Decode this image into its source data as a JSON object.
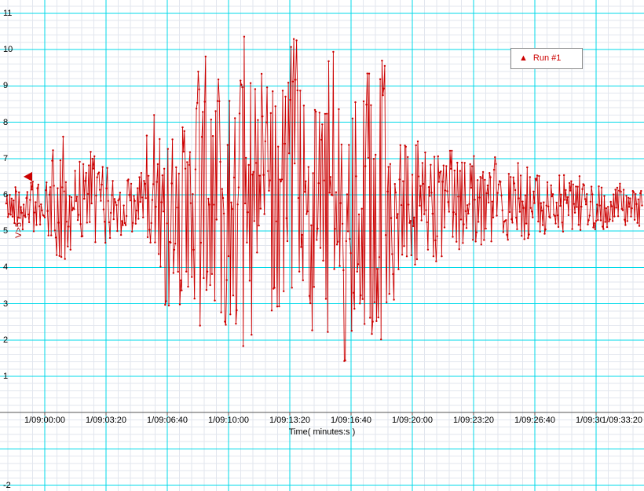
{
  "chart_data": {
    "type": "line",
    "title": "",
    "xlabel": "Time( minutes:s )",
    "ylabel": "",
    "grid": {
      "on": true,
      "major_color": "#00d9e9",
      "minor_color": "#e2e6ee",
      "background": "#ffffff",
      "axis_line_color": "#555555"
    },
    "legend": {
      "position": "top-right",
      "entries": [
        {
          "label": "Run #1",
          "marker": "triangle-up",
          "marker_glyph": "▲",
          "color": "#cc0000"
        }
      ]
    },
    "x_axis": {
      "tick_seconds": [
        0,
        200,
        400,
        600,
        800,
        1000,
        1200,
        1400,
        1600,
        1800,
        2000
      ],
      "tick_labels": [
        "1/09:00:00",
        "1/09:03:20",
        "1/09:06:40",
        "1/09:10:00",
        "1/09:13:20",
        "1/09:16:40",
        "1/09:20:00",
        "1/09:23:20",
        "1/09:26:40",
        "1/09:30:00",
        "1/09:33:20"
      ],
      "range_seconds": [
        -126,
        1951
      ]
    },
    "y_axis": {
      "tick_values": [
        11,
        10,
        9,
        8,
        7,
        6,
        5,
        4,
        3,
        2,
        1,
        -2
      ],
      "tick_labels": [
        "11",
        "10",
        "9",
        "8",
        "7",
        "6",
        "5",
        "4",
        "3",
        "2",
        "1",
        "-2"
      ],
      "range": [
        -2.3,
        11.4
      ]
    },
    "series": [
      {
        "name": "Run #1",
        "color": "#cc0000",
        "marker": "dot",
        "style": "line-with-dots",
        "baseline": 5.65,
        "clip_range": [
          1.2,
          10.4
        ],
        "sample_interval_seconds": 3,
        "envelope_keypoints": [
          [
            -126,
            5.1,
            6.25
          ],
          [
            -50,
            5.0,
            6.35
          ],
          [
            10,
            4.7,
            6.6
          ],
          [
            46,
            3.6,
            8.0
          ],
          [
            90,
            4.4,
            7.2
          ],
          [
            150,
            4.6,
            7.4
          ],
          [
            230,
            4.7,
            7.0
          ],
          [
            300,
            5.0,
            6.5
          ],
          [
            325,
            4.2,
            7.4
          ],
          [
            341,
            2.0,
            9.3
          ],
          [
            380,
            3.0,
            8.6
          ],
          [
            430,
            2.5,
            8.9
          ],
          [
            480,
            3.4,
            8.2
          ],
          [
            500,
            1.4,
            10.3
          ],
          [
            560,
            1.25,
            10.4
          ],
          [
            650,
            1.25,
            10.4
          ],
          [
            738,
            2.8,
            8.8
          ],
          [
            770,
            1.3,
            10.35
          ],
          [
            840,
            1.25,
            10.4
          ],
          [
            900,
            3.0,
            8.6
          ],
          [
            930,
            1.3,
            10.35
          ],
          [
            1000,
            1.25,
            10.4
          ],
          [
            1040,
            2.2,
            9.2
          ],
          [
            1070,
            1.3,
            10.35
          ],
          [
            1110,
            1.25,
            10.4
          ],
          [
            1140,
            2.6,
            9.0
          ],
          [
            1190,
            3.5,
            8.0
          ],
          [
            1230,
            4.0,
            7.7
          ],
          [
            1290,
            3.9,
            7.6
          ],
          [
            1360,
            4.3,
            7.3
          ],
          [
            1450,
            4.5,
            7.1
          ],
          [
            1550,
            4.7,
            6.9
          ],
          [
            1650,
            4.85,
            6.75
          ],
          [
            1780,
            5.0,
            6.5
          ],
          [
            1900,
            5.1,
            6.3
          ],
          [
            1951,
            5.1,
            6.25
          ]
        ]
      }
    ],
    "annotations": {
      "left_axis_marker": {
        "shape": "triangle-left",
        "color": "#cc0000",
        "value": 6.5
      },
      "left_rotated_label": {
        "text": "V>5",
        "color": "#b00000"
      }
    }
  }
}
